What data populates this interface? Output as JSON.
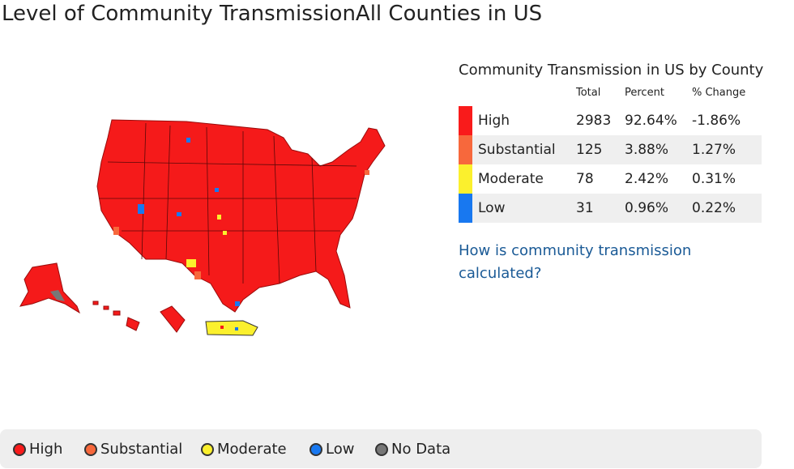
{
  "header": {
    "title": "Level of Community TransmissionAll Counties in US"
  },
  "table": {
    "title": "Community Transmission in US by County",
    "columns": [
      "Total",
      "Percent",
      "% Change"
    ],
    "rows": [
      {
        "label": "High",
        "color": "#f91b1b",
        "cells": [
          "2983",
          "92.64%",
          "-1.86%"
        ]
      },
      {
        "label": "Substantial",
        "color": "#f7683c",
        "cells": [
          "125",
          "3.88%",
          "1.27%"
        ]
      },
      {
        "label": "Moderate",
        "color": "#fbf02d",
        "cells": [
          "78",
          "2.42%",
          "0.31%"
        ]
      },
      {
        "label": "Low",
        "color": "#1878f0",
        "cells": [
          "31",
          "0.96%",
          "0.22%"
        ]
      }
    ]
  },
  "link": "How is community transmission calculated?",
  "legend": [
    {
      "label": "High",
      "color": "#f91b1b"
    },
    {
      "label": "Substantial",
      "color": "#f7683c"
    },
    {
      "label": "Moderate",
      "color": "#fbf02d"
    },
    {
      "label": "Low",
      "color": "#1878f0"
    },
    {
      "label": "No Data",
      "color": "#777777"
    }
  ]
}
